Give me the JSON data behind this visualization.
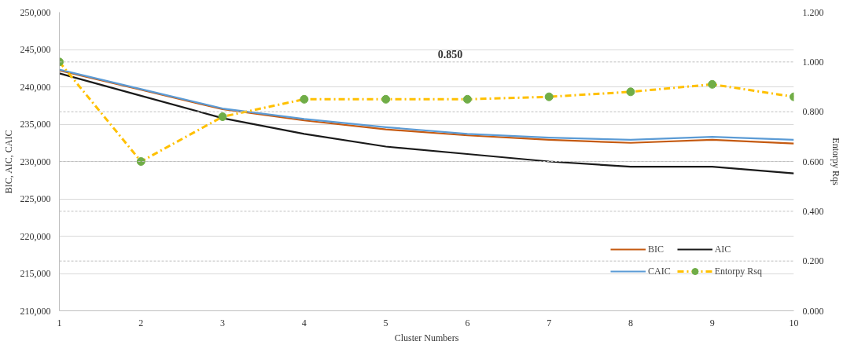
{
  "chart_data": {
    "type": "line",
    "xlabel": "Cluster Numbers",
    "ylabel": "BIC, AIC, CAIC",
    "y2label": "Entorpy Rqs",
    "x": [
      1,
      2,
      3,
      4,
      5,
      6,
      7,
      8,
      9,
      10
    ],
    "series": [
      {
        "name": "BIC",
        "color": "#c55a11",
        "values": [
          242200,
          239600,
          237000,
          235500,
          234300,
          233500,
          232900,
          232500,
          232900,
          232400
        ]
      },
      {
        "name": "AIC",
        "color": "#1a1a1a",
        "values": [
          241800,
          238800,
          235800,
          233700,
          232000,
          231000,
          230000,
          229300,
          229300,
          228400
        ]
      },
      {
        "name": "CAIC",
        "color": "#5b9bd5",
        "values": [
          242300,
          239700,
          237100,
          235700,
          234600,
          233700,
          233200,
          232900,
          233300,
          232900
        ]
      },
      {
        "name": "Entorpy Rsq",
        "color": "#ffc000",
        "axis": "y2",
        "line_style": "dashed",
        "marker": "circle",
        "colors": [
          "#70ad47",
          "#70ad47",
          "#70ad47",
          "#70ad47",
          "#70ad47",
          "#70ad47",
          "#70ad47",
          "#70ad47",
          "#70ad47",
          "#70ad47"
        ],
        "values": [
          1.0,
          0.6,
          0.78,
          0.85,
          0.85,
          0.85,
          0.86,
          0.88,
          0.91,
          0.86
        ]
      }
    ],
    "annotations": [
      "0.850"
    ],
    "xlim": [
      1,
      10
    ],
    "xticks": [
      1,
      2,
      3,
      4,
      5,
      6,
      7,
      8,
      9,
      10
    ],
    "ylim": [
      210000,
      250000
    ],
    "yticks": [
      {
        "value": 210000,
        "label": "210,000"
      },
      {
        "value": 215000,
        "label": "215,000"
      },
      {
        "value": 220000,
        "label": "220,000"
      },
      {
        "value": 225000,
        "label": "225,000"
      },
      {
        "value": 230000,
        "label": "230,000"
      },
      {
        "value": 235000,
        "label": "235,000"
      },
      {
        "value": 240000,
        "label": "240,000"
      },
      {
        "value": 245000,
        "label": "245,000"
      },
      {
        "value": 250000,
        "label": "250,000"
      }
    ],
    "y2lim": [
      0,
      1.2
    ],
    "y2ticks": [
      {
        "value": 0,
        "label": "0.000"
      },
      {
        "value": 0.2,
        "label": "0.200"
      },
      {
        "value": 0.4,
        "label": "0.400"
      },
      {
        "value": 0.6,
        "label": "0.600"
      },
      {
        "value": 0.8,
        "label": "0.800"
      },
      {
        "value": 1.0,
        "label": "1.000"
      },
      {
        "value": 1.2,
        "label": "1.200"
      }
    ],
    "grid": true,
    "legend": "bottom right"
  }
}
